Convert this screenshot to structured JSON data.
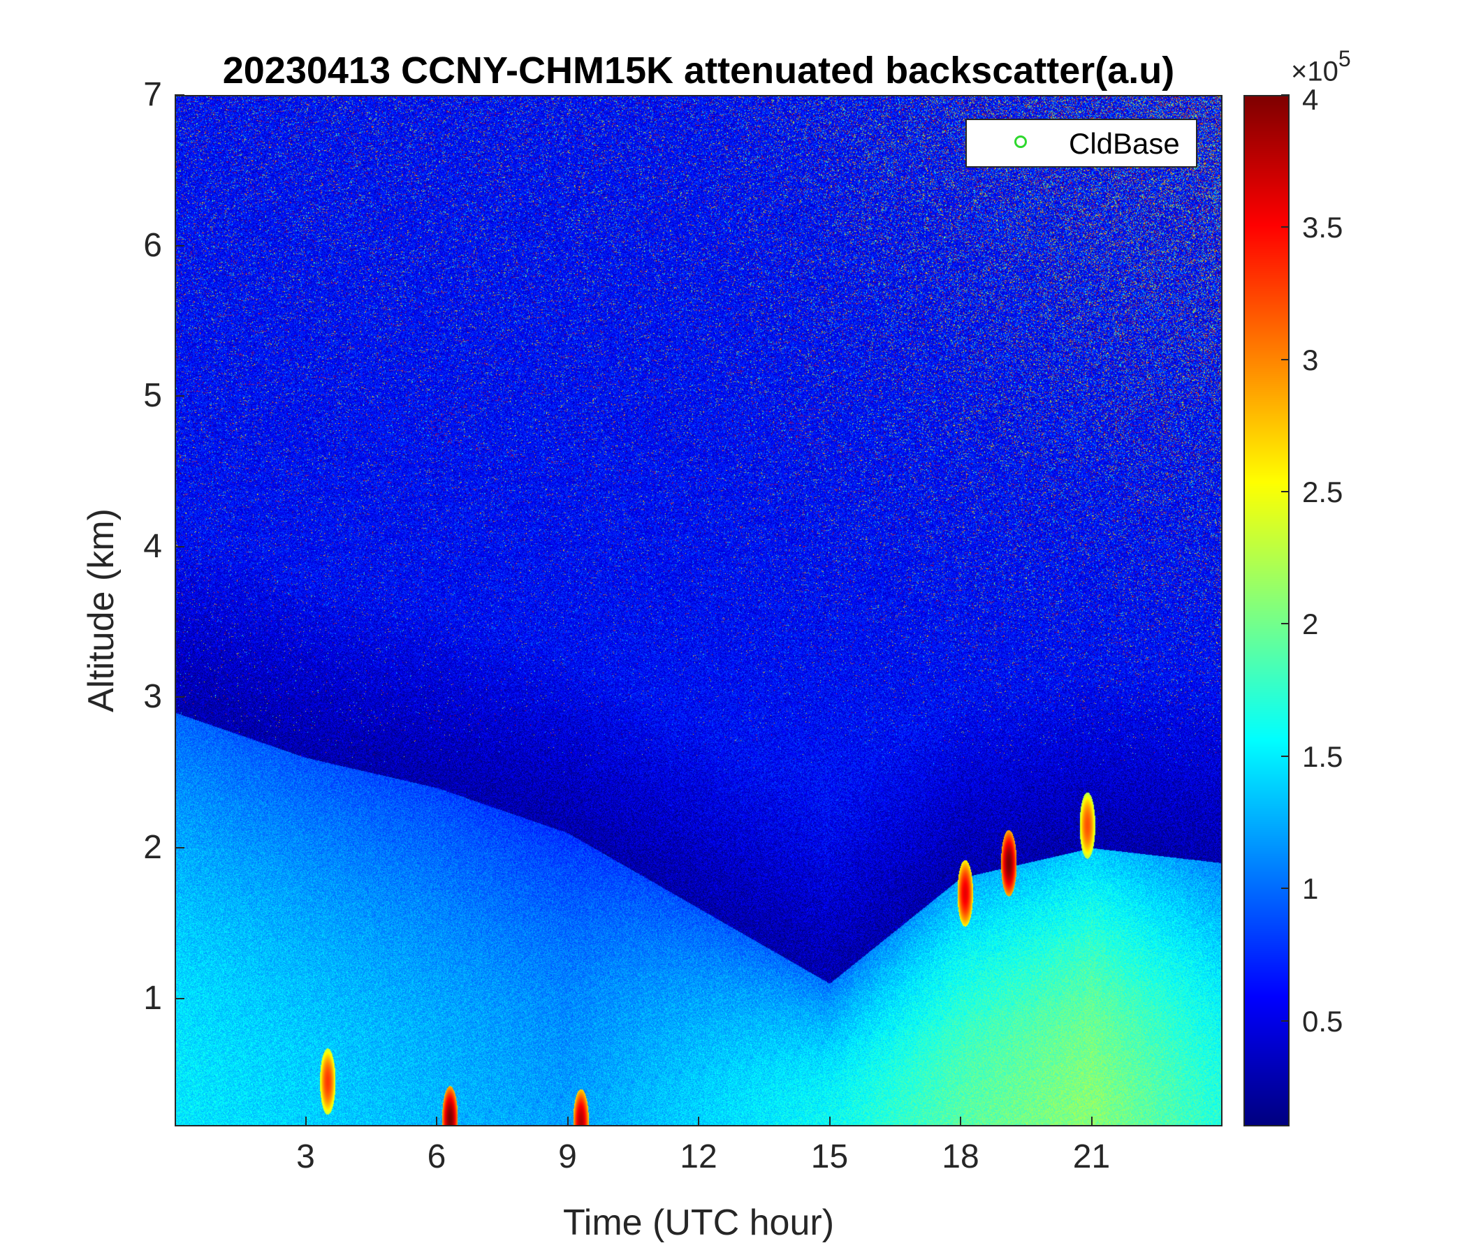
{
  "chart_data": {
    "type": "heatmap",
    "title": "20230413 CCNY-CHM15K attenuated backscatter(a.u)",
    "xlabel": "Time (UTC hour)",
    "ylabel": "Altitude (km)",
    "xlim": [
      0,
      24
    ],
    "ylim": [
      0.15,
      7
    ],
    "xticks": [
      3,
      6,
      9,
      12,
      15,
      18,
      21
    ],
    "xtick_labels": [
      "3",
      "6",
      "9",
      "12",
      "15",
      "18",
      "21"
    ],
    "yticks": [
      1,
      2,
      3,
      4,
      5,
      6,
      7
    ],
    "ytick_labels": [
      "1",
      "2",
      "3",
      "4",
      "5",
      "6",
      "7"
    ],
    "colorbar": {
      "range": [
        10000,
        400000
      ],
      "ticks": [
        50000,
        100000,
        150000,
        200000,
        250000,
        300000,
        350000,
        400000
      ],
      "tick_labels": [
        "0.5",
        "1",
        "1.5",
        "2",
        "2.5",
        "3",
        "3.5",
        "4"
      ],
      "multiplier_prefix": "×10",
      "multiplier_exponent": "5",
      "colormap": "jet"
    },
    "legend": {
      "placement": "top-right",
      "entries": [
        {
          "label": "CldBase",
          "marker": "circle",
          "color": "#2ed82e"
        }
      ]
    },
    "features": {
      "background_level": 60000,
      "noise_increase_with_altitude": true,
      "boundary_layer": [
        {
          "time": 0,
          "top_km": 2.9,
          "level": 150000
        },
        {
          "time": 3,
          "top_km": 2.6,
          "level": 140000
        },
        {
          "time": 6,
          "top_km": 2.4,
          "level": 130000
        },
        {
          "time": 9,
          "top_km": 2.1,
          "level": 120000
        },
        {
          "time": 12,
          "top_km": 1.6,
          "level": 140000
        },
        {
          "time": 15,
          "top_km": 1.1,
          "level": 160000
        },
        {
          "time": 18,
          "top_km": 1.8,
          "level": 190000
        },
        {
          "time": 21,
          "top_km": 2.0,
          "level": 210000
        },
        {
          "time": 24,
          "top_km": 1.9,
          "level": 170000
        }
      ],
      "clouds": [
        {
          "time": 19.1,
          "alt_km": 1.9,
          "value": 400000
        },
        {
          "time": 18.1,
          "alt_km": 1.7,
          "value": 360000
        },
        {
          "time": 20.9,
          "alt_km": 2.15,
          "value": 320000
        },
        {
          "time": 3.5,
          "alt_km": 0.45,
          "value": 330000
        },
        {
          "time": 6.3,
          "alt_km": 0.2,
          "value": 400000
        },
        {
          "time": 9.3,
          "alt_km": 0.18,
          "value": 380000
        }
      ]
    }
  },
  "colors": {
    "axis": "#262626",
    "legend_marker": "#2ed82e"
  }
}
